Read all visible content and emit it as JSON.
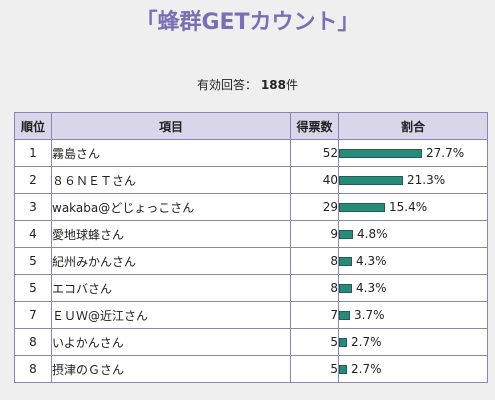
{
  "title": "「蜂群GETカウント」",
  "summary": {
    "label": "有効回答：",
    "count": "188",
    "unit": "件"
  },
  "colors": {
    "title": "#7a6fb5",
    "bar": "#2a8a7a",
    "header_bg": "#d8d6e8",
    "border": "#8a84b8"
  },
  "table": {
    "headers": {
      "rank": "順位",
      "item": "項目",
      "votes": "得票数",
      "ratio": "割合"
    },
    "rows": [
      {
        "rank": "1",
        "item": "霧島さん",
        "votes": "52",
        "percent": "27.7%",
        "fraction": 0.277
      },
      {
        "rank": "2",
        "item": "８６ＮＥＴさん",
        "votes": "40",
        "percent": "21.3%",
        "fraction": 0.213
      },
      {
        "rank": "3",
        "item": "wakaba@どじょっこさん",
        "votes": "29",
        "percent": "15.4%",
        "fraction": 0.154
      },
      {
        "rank": "4",
        "item": "愛地球蜂さん",
        "votes": "9",
        "percent": "4.8%",
        "fraction": 0.048
      },
      {
        "rank": "5",
        "item": "紀州みかんさん",
        "votes": "8",
        "percent": "4.3%",
        "fraction": 0.043
      },
      {
        "rank": "5",
        "item": "エコバさん",
        "votes": "8",
        "percent": "4.3%",
        "fraction": 0.043
      },
      {
        "rank": "7",
        "item": "ＥＵＷ@近江さん",
        "votes": "7",
        "percent": "3.7%",
        "fraction": 0.037
      },
      {
        "rank": "8",
        "item": "いよかんさん",
        "votes": "5",
        "percent": "2.7%",
        "fraction": 0.027
      },
      {
        "rank": "8",
        "item": "摂津のＧさん",
        "votes": "5",
        "percent": "2.7%",
        "fraction": 0.027
      }
    ]
  }
}
